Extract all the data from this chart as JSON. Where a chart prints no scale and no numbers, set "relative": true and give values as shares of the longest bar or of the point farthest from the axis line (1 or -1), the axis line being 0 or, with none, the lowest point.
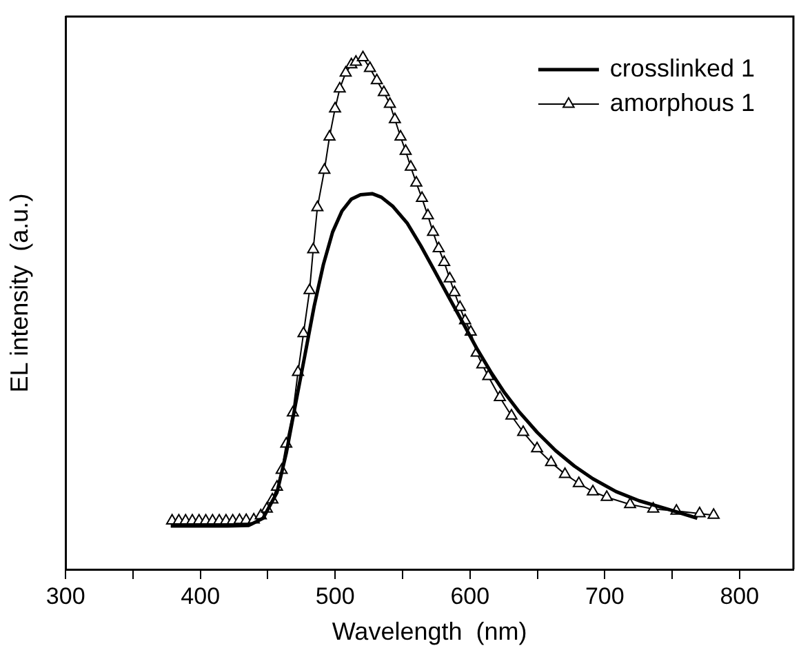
{
  "chart_data": {
    "type": "line",
    "xlabel": "Wavelength  (nm)",
    "ylabel": "EL intensity  (a.u.)",
    "relative": true,
    "xlim": [
      300,
      840
    ],
    "xticks": [
      300,
      {
        "value": 350,
        "label": null
      },
      400,
      {
        "value": 450,
        "label": null
      },
      500,
      {
        "value": 550,
        "label": null
      },
      600,
      {
        "value": 650,
        "label": null
      },
      700,
      {
        "value": 750,
        "label": null
      },
      800
    ],
    "grid": false,
    "legend": "top right",
    "series": [
      {
        "name": "crosslinked 1",
        "color": "#000000",
        "marker": "none",
        "line_style": "solid",
        "x": [
          378,
          400,
          420,
          436,
          446.5,
          456.8,
          463.7,
          470.6,
          477.5,
          484.4,
          491.2,
          498.1,
          505,
          511.9,
          518.8,
          527.4,
          534.3,
          542.9,
          553.3,
          563.6,
          574,
          584.3,
          594.7,
          605,
          615.4,
          625.7,
          636.1,
          649.8,
          663.6,
          677.4,
          691.2,
          708.4,
          725.6,
          746.3,
          768.7
        ],
        "values": [
          0.085,
          0.085,
          0.085,
          0.086,
          0.1,
          0.15,
          0.227,
          0.323,
          0.418,
          0.514,
          0.595,
          0.659,
          0.7,
          0.723,
          0.732,
          0.734,
          0.727,
          0.709,
          0.677,
          0.632,
          0.582,
          0.532,
          0.482,
          0.432,
          0.386,
          0.345,
          0.309,
          0.268,
          0.232,
          0.202,
          0.177,
          0.152,
          0.134,
          0.118,
          0.1
        ]
      },
      {
        "name": "amorphous 1",
        "color": "#000000",
        "marker": "triangle",
        "line_style": "solid",
        "x": [
          379,
          384,
          389,
          394,
          399,
          404,
          409,
          414,
          419,
          424,
          429,
          434,
          439.6,
          444.8,
          449.3,
          453.4,
          456.8,
          460.3,
          463.7,
          468.6,
          472.4,
          476.5,
          481,
          483.7,
          486.8,
          492,
          495.8,
          499.9,
          503.4,
          507.8,
          512,
          515.4,
          520.6,
          525.8,
          530.9,
          536.1,
          540.6,
          544.3,
          548.5,
          552.3,
          556.1,
          560.2,
          564.4,
          568.8,
          572.6,
          576.8,
          580.9,
          585,
          588.5,
          592.6,
          596.4,
          600.6,
          605,
          609.2,
          613.6,
          622.2,
          630.8,
          639.5,
          649.8,
          660.2,
          670.5,
          680.8,
          691.2,
          701.5,
          718.8,
          736,
          753.2,
          770.4,
          780.8
        ],
        "values": [
          0.095,
          0.095,
          0.095,
          0.095,
          0.095,
          0.095,
          0.095,
          0.095,
          0.095,
          0.095,
          0.096,
          0.096,
          0.097,
          0.105,
          0.118,
          0.136,
          0.161,
          0.194,
          0.245,
          0.306,
          0.385,
          0.461,
          0.545,
          0.625,
          0.707,
          0.78,
          0.845,
          0.9,
          0.939,
          0.97,
          0.986,
          0.991,
          1,
          0.979,
          0.955,
          0.932,
          0.909,
          0.879,
          0.845,
          0.817,
          0.786,
          0.755,
          0.725,
          0.691,
          0.659,
          0.627,
          0.6,
          0.568,
          0.541,
          0.512,
          0.486,
          0.464,
          0.423,
          0.4,
          0.377,
          0.336,
          0.3,
          0.268,
          0.236,
          0.209,
          0.186,
          0.168,
          0.152,
          0.141,
          0.127,
          0.118,
          0.114,
          0.109,
          0.106
        ]
      }
    ]
  }
}
